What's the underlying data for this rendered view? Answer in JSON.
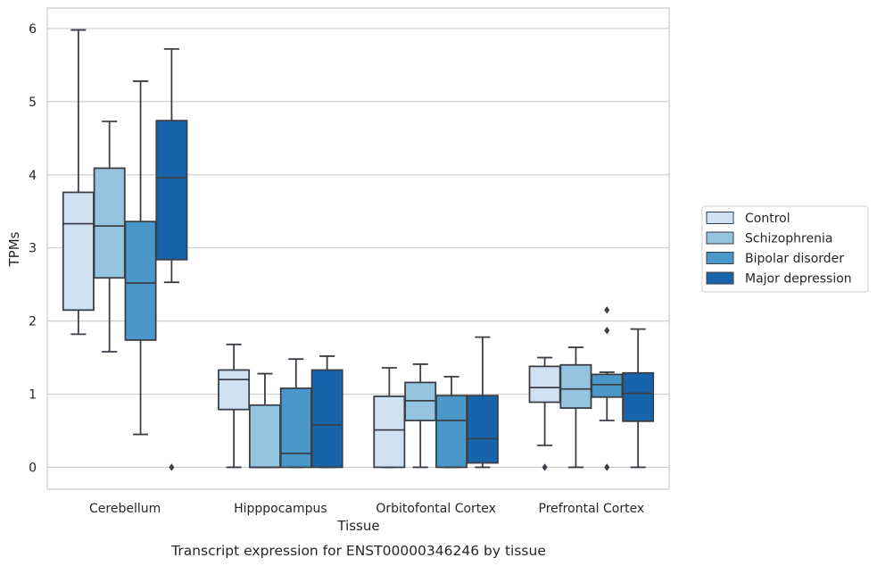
{
  "chart_data": {
    "type": "boxplot",
    "title": "",
    "caption": "Transcript expression for ENST00000346246 by tissue",
    "xlabel": "Tissue",
    "ylabel": "TPMs",
    "ylim": [
      -0.3,
      6.28
    ],
    "yticks": [
      0,
      1,
      2,
      3,
      4,
      5,
      6
    ],
    "grid": true,
    "legend_position": "right",
    "categories": [
      "Cerebellum",
      "Hipppocampus",
      "Orbitofontal Cortex",
      "Prefrontal Cortex"
    ],
    "series": [
      {
        "name": "Control",
        "color": "#d0e1f2",
        "boxes": [
          {
            "whislo": 1.82,
            "q1": 2.15,
            "med": 3.33,
            "q3": 3.76,
            "whishi": 5.98,
            "fliers": []
          },
          {
            "whislo": 0.0,
            "q1": 0.79,
            "med": 1.2,
            "q3": 1.33,
            "whishi": 1.68,
            "fliers": []
          },
          {
            "whislo": 0.0,
            "q1": 0.0,
            "med": 0.51,
            "q3": 0.97,
            "whishi": 1.36,
            "fliers": []
          },
          {
            "whislo": 0.3,
            "q1": 0.89,
            "med": 1.09,
            "q3": 1.38,
            "whishi": 1.5,
            "fliers": [
              0.0
            ]
          }
        ]
      },
      {
        "name": "Schizophrenia",
        "color": "#94c4df",
        "boxes": [
          {
            "whislo": 1.58,
            "q1": 2.59,
            "med": 3.3,
            "q3": 4.09,
            "whishi": 4.73,
            "fliers": []
          },
          {
            "whislo": 0.0,
            "q1": 0.0,
            "med": 0.0,
            "q3": 0.85,
            "whishi": 1.28,
            "fliers": []
          },
          {
            "whislo": 0.0,
            "q1": 0.64,
            "med": 0.91,
            "q3": 1.16,
            "whishi": 1.41,
            "fliers": []
          },
          {
            "whislo": 0.0,
            "q1": 0.81,
            "med": 1.07,
            "q3": 1.4,
            "whishi": 1.64,
            "fliers": []
          }
        ]
      },
      {
        "name": "Bipolar disorder",
        "color": "#4a98c9",
        "boxes": [
          {
            "whislo": 0.45,
            "q1": 1.74,
            "med": 2.52,
            "q3": 3.36,
            "whishi": 5.28,
            "fliers": []
          },
          {
            "whislo": 0.0,
            "q1": 0.0,
            "med": 0.19,
            "q3": 1.08,
            "whishi": 1.48,
            "fliers": []
          },
          {
            "whislo": 0.0,
            "q1": 0.0,
            "med": 0.64,
            "q3": 0.98,
            "whishi": 1.24,
            "fliers": []
          },
          {
            "whislo": 0.64,
            "q1": 0.96,
            "med": 1.13,
            "q3": 1.27,
            "whishi": 1.3,
            "fliers": [
              1.87,
              2.15,
              0.0
            ]
          }
        ]
      },
      {
        "name": "Major depression",
        "color": "#1764ab",
        "boxes": [
          {
            "whislo": 2.53,
            "q1": 2.84,
            "med": 3.96,
            "q3": 4.74,
            "whishi": 5.72,
            "fliers": [
              0.0
            ]
          },
          {
            "whislo": 0.0,
            "q1": 0.0,
            "med": 0.58,
            "q3": 1.33,
            "whishi": 1.52,
            "fliers": []
          },
          {
            "whislo": 0.0,
            "q1": 0.06,
            "med": 0.39,
            "q3": 0.98,
            "whishi": 1.78,
            "fliers": []
          },
          {
            "whislo": 0.0,
            "q1": 0.63,
            "med": 1.01,
            "q3": 1.29,
            "whishi": 1.89,
            "fliers": []
          }
        ]
      }
    ]
  }
}
